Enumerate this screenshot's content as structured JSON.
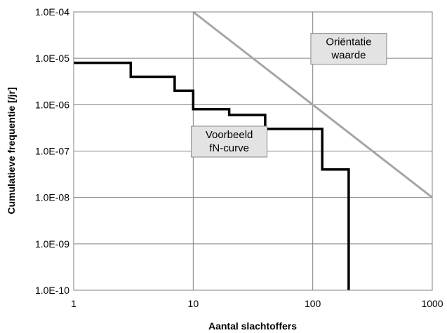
{
  "chart_data": {
    "type": "line",
    "xlabel": "Aantal slachtoffers",
    "ylabel": "Cumulatieve frequentie [/jr]",
    "x_scale": "log",
    "y_scale": "log",
    "xlim": [
      1,
      1000
    ],
    "ylim": [
      1e-10,
      0.0001
    ],
    "grid": true,
    "x_ticks": [
      {
        "value": 1,
        "label": "1"
      },
      {
        "value": 10,
        "label": "10"
      },
      {
        "value": 100,
        "label": "100"
      },
      {
        "value": 1000,
        "label": "1000"
      }
    ],
    "y_ticks": [
      {
        "value": 0.0001,
        "label": "1.0E-04"
      },
      {
        "value": 1e-05,
        "label": "1.0E-05"
      },
      {
        "value": 1e-06,
        "label": "1.0E-06"
      },
      {
        "value": 1e-07,
        "label": "1.0E-07"
      },
      {
        "value": 1e-08,
        "label": "1.0E-08"
      },
      {
        "value": 1e-09,
        "label": "1.0E-09"
      },
      {
        "value": 1e-10,
        "label": "1.0E-10"
      }
    ],
    "series": [
      {
        "id": "fn-curve",
        "color": "#000000",
        "style": "step",
        "points": [
          [
            1,
            8e-06
          ],
          [
            3,
            8e-06
          ],
          [
            3,
            4e-06
          ],
          [
            7,
            4e-06
          ],
          [
            7,
            2e-06
          ],
          [
            10,
            2e-06
          ],
          [
            10,
            8e-07
          ],
          [
            20,
            8e-07
          ],
          [
            20,
            6e-07
          ],
          [
            40,
            6e-07
          ],
          [
            40,
            3e-07
          ],
          [
            120,
            3e-07
          ],
          [
            120,
            4e-08
          ],
          [
            200,
            4e-08
          ],
          [
            200,
            1e-10
          ]
        ]
      },
      {
        "id": "orientatiewaarde",
        "color": "#a6a6a6",
        "style": "line",
        "points": [
          [
            10,
            0.0001
          ],
          [
            1000,
            1e-08
          ]
        ]
      }
    ],
    "annotations": [
      {
        "id": "orientatie",
        "lines": [
          "Oriëntatie",
          "waarde"
        ],
        "x": 200,
        "y": 1.6e-05,
        "fill": "#e3e3e3"
      },
      {
        "id": "voorbeeld",
        "lines": [
          "Voorbeeld",
          "fN-curve"
        ],
        "x": 20,
        "y": 1.6e-07,
        "fill": "#e3e3e3"
      }
    ]
  }
}
